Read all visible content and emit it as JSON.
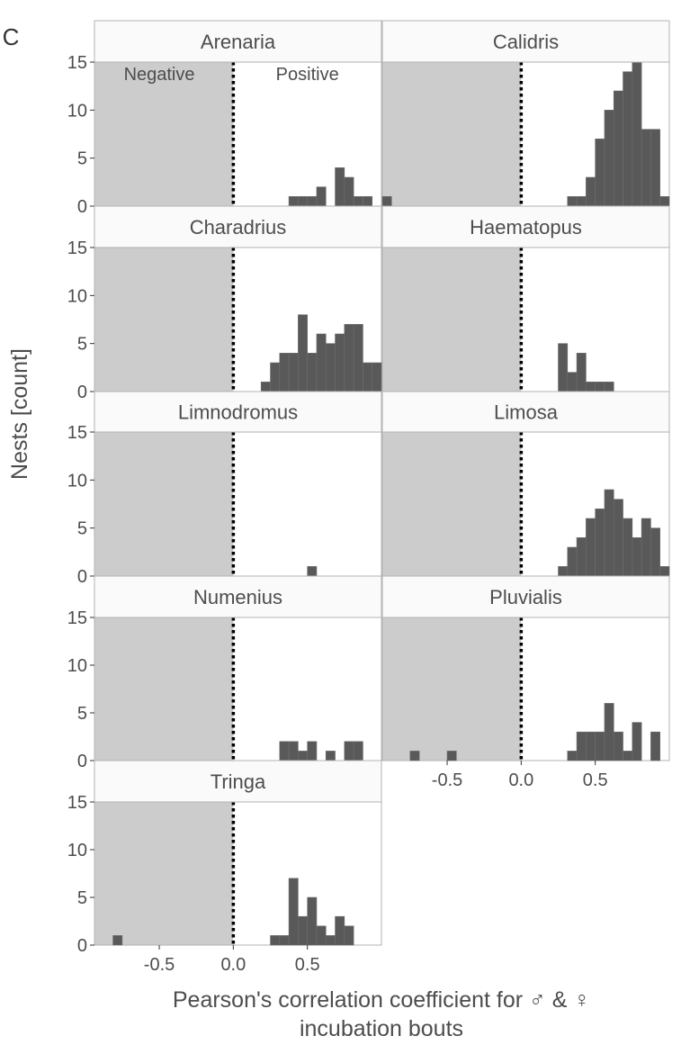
{
  "figure": {
    "panel_letter": "C",
    "ylabel": "Nests [count]",
    "xlabel_line1": "Pearson's correlation coefficient for ♂ & ♀",
    "xlabel_line2": "incubation bouts",
    "region_labels": {
      "negative": "Negative",
      "positive": "Positive"
    }
  },
  "chart_data": {
    "type": "bar",
    "subtype": "faceted histogram",
    "bin_width": 0.0625,
    "xlim": [
      -0.9375,
      1.0
    ],
    "ylim": [
      0,
      15
    ],
    "x_ticks": [
      -0.5,
      0.0,
      0.5
    ],
    "x_tick_labels": [
      "-0.5",
      "0.0",
      "0.5"
    ],
    "y_ticks": [
      0,
      5,
      10,
      15
    ],
    "y_tick_labels": [
      "0",
      "5",
      "10",
      "15"
    ],
    "reference_line_x": 0.0,
    "shaded_region": [
      -0.9375,
      0.0
    ],
    "colors": {
      "bar": "#595959",
      "shade": "#cccccc",
      "strip_bg": "#fafafa",
      "strip_border": "#b3b3b3",
      "text": "#4d4d4d"
    },
    "facets": [
      {
        "name": "Arenaria",
        "bars": [
          {
            "x": 0.375,
            "count": 1
          },
          {
            "x": 0.4375,
            "count": 1
          },
          {
            "x": 0.5,
            "count": 1
          },
          {
            "x": 0.5625,
            "count": 2
          },
          {
            "x": 0.6875,
            "count": 4
          },
          {
            "x": 0.75,
            "count": 3
          },
          {
            "x": 0.8125,
            "count": 1
          },
          {
            "x": 0.875,
            "count": 1
          }
        ]
      },
      {
        "name": "Calidris",
        "bars": [
          {
            "x": -0.9375,
            "count": 1
          },
          {
            "x": 0.3125,
            "count": 1
          },
          {
            "x": 0.375,
            "count": 1
          },
          {
            "x": 0.4375,
            "count": 3
          },
          {
            "x": 0.5,
            "count": 7
          },
          {
            "x": 0.5625,
            "count": 10
          },
          {
            "x": 0.625,
            "count": 12
          },
          {
            "x": 0.6875,
            "count": 14
          },
          {
            "x": 0.75,
            "count": 15
          },
          {
            "x": 0.8125,
            "count": 8
          },
          {
            "x": 0.875,
            "count": 8
          },
          {
            "x": 0.9375,
            "count": 1
          }
        ]
      },
      {
        "name": "Charadrius",
        "bars": [
          {
            "x": 0.1875,
            "count": 1
          },
          {
            "x": 0.25,
            "count": 3
          },
          {
            "x": 0.3125,
            "count": 4
          },
          {
            "x": 0.375,
            "count": 4
          },
          {
            "x": 0.4375,
            "count": 8
          },
          {
            "x": 0.5,
            "count": 4
          },
          {
            "x": 0.5625,
            "count": 6
          },
          {
            "x": 0.625,
            "count": 5
          },
          {
            "x": 0.6875,
            "count": 6
          },
          {
            "x": 0.75,
            "count": 7
          },
          {
            "x": 0.8125,
            "count": 7
          },
          {
            "x": 0.875,
            "count": 3
          },
          {
            "x": 0.9375,
            "count": 3
          }
        ]
      },
      {
        "name": "Haematopus",
        "bars": [
          {
            "x": 0.25,
            "count": 5
          },
          {
            "x": 0.3125,
            "count": 2
          },
          {
            "x": 0.375,
            "count": 4
          },
          {
            "x": 0.4375,
            "count": 1
          },
          {
            "x": 0.5,
            "count": 1
          },
          {
            "x": 0.5625,
            "count": 1
          }
        ]
      },
      {
        "name": "Limnodromus",
        "bars": [
          {
            "x": 0.5,
            "count": 1
          }
        ]
      },
      {
        "name": "Limosa",
        "bars": [
          {
            "x": 0.25,
            "count": 1
          },
          {
            "x": 0.3125,
            "count": 3
          },
          {
            "x": 0.375,
            "count": 4
          },
          {
            "x": 0.4375,
            "count": 6
          },
          {
            "x": 0.5,
            "count": 7
          },
          {
            "x": 0.5625,
            "count": 9
          },
          {
            "x": 0.625,
            "count": 8
          },
          {
            "x": 0.6875,
            "count": 6
          },
          {
            "x": 0.75,
            "count": 4
          },
          {
            "x": 0.8125,
            "count": 6
          },
          {
            "x": 0.875,
            "count": 5
          },
          {
            "x": 0.9375,
            "count": 1
          }
        ]
      },
      {
        "name": "Numenius",
        "bars": [
          {
            "x": 0.3125,
            "count": 2
          },
          {
            "x": 0.375,
            "count": 2
          },
          {
            "x": 0.4375,
            "count": 1
          },
          {
            "x": 0.5,
            "count": 2
          },
          {
            "x": 0.625,
            "count": 1
          },
          {
            "x": 0.75,
            "count": 2
          },
          {
            "x": 0.8125,
            "count": 2
          }
        ]
      },
      {
        "name": "Pluvialis",
        "bars": [
          {
            "x": -0.75,
            "count": 1
          },
          {
            "x": -0.5,
            "count": 1
          },
          {
            "x": 0.3125,
            "count": 1
          },
          {
            "x": 0.375,
            "count": 3
          },
          {
            "x": 0.4375,
            "count": 3
          },
          {
            "x": 0.5,
            "count": 3
          },
          {
            "x": 0.5625,
            "count": 6
          },
          {
            "x": 0.625,
            "count": 3
          },
          {
            "x": 0.6875,
            "count": 1
          },
          {
            "x": 0.75,
            "count": 4
          },
          {
            "x": 0.875,
            "count": 3
          }
        ]
      },
      {
        "name": "Tringa",
        "bars": [
          {
            "x": -0.8125,
            "count": 1
          },
          {
            "x": 0.25,
            "count": 1
          },
          {
            "x": 0.3125,
            "count": 1
          },
          {
            "x": 0.375,
            "count": 7
          },
          {
            "x": 0.4375,
            "count": 3
          },
          {
            "x": 0.5,
            "count": 5
          },
          {
            "x": 0.5625,
            "count": 2
          },
          {
            "x": 0.625,
            "count": 1
          },
          {
            "x": 0.6875,
            "count": 3
          },
          {
            "x": 0.75,
            "count": 2
          }
        ]
      }
    ]
  }
}
